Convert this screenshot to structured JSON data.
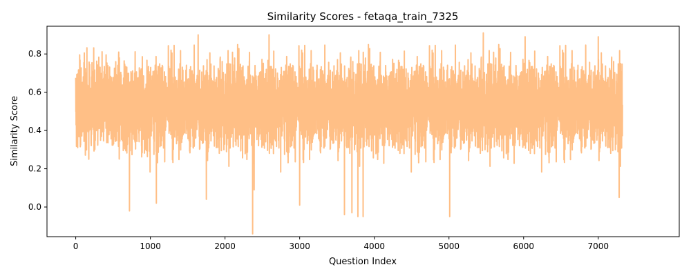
{
  "chart_data": {
    "type": "line",
    "title": "Similarity Scores - fetaqa_train_7325",
    "xlabel": "Question Index",
    "ylabel": "Similarity Score",
    "xlim": [
      -385,
      8085
    ],
    "ylim": [
      -0.155,
      0.945
    ],
    "xticks": [
      0,
      1000,
      2000,
      3000,
      4000,
      5000,
      6000,
      7000
    ],
    "xtick_labels": [
      "0",
      "1000",
      "2000",
      "3000",
      "4000",
      "5000",
      "6000",
      "7000"
    ],
    "yticks": [
      0.0,
      0.2,
      0.4,
      0.6,
      0.8
    ],
    "ytick_labels": [
      "0.0",
      "0.2",
      "0.4",
      "0.6",
      "0.8"
    ],
    "grid": false,
    "legend": "none",
    "series": [
      {
        "color": "#ffbf86",
        "x_start": 0,
        "x_end": 7324,
        "count": 7325,
        "mean": 0.53,
        "typical_range": [
          0.2,
          0.85
        ],
        "min": -0.14,
        "max": 0.91,
        "notable_points": [
          {
            "x": 720,
            "y": -0.02
          },
          {
            "x": 1080,
            "y": 0.02
          },
          {
            "x": 1750,
            "y": 0.04
          },
          {
            "x": 2370,
            "y": -0.14
          },
          {
            "x": 2390,
            "y": 0.09
          },
          {
            "x": 3000,
            "y": 0.01
          },
          {
            "x": 3600,
            "y": -0.04
          },
          {
            "x": 3700,
            "y": -0.03
          },
          {
            "x": 3780,
            "y": -0.05
          },
          {
            "x": 3850,
            "y": -0.05
          },
          {
            "x": 5010,
            "y": -0.05
          },
          {
            "x": 7280,
            "y": 0.05
          },
          {
            "x": 1640,
            "y": 0.9
          },
          {
            "x": 2590,
            "y": 0.9
          },
          {
            "x": 5460,
            "y": 0.91
          },
          {
            "x": 6020,
            "y": 0.89
          },
          {
            "x": 7000,
            "y": 0.89
          }
        ]
      }
    ]
  }
}
